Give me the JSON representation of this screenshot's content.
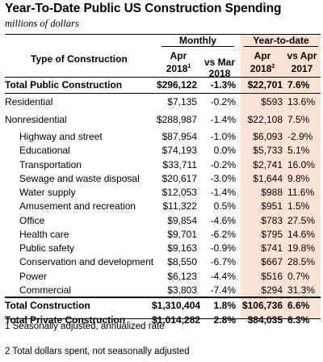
{
  "title": "Year-To-Date Public US Construction Spending",
  "subtitle": "millions of dollars",
  "headers": {
    "type_of_construction": "Type of Construction",
    "monthly": "Monthly",
    "ytd": "Year-to-date",
    "apr": "Apr",
    "year_2018": "2018",
    "vs_mar": "vs Mar",
    "vs_apr": "vs Apr",
    "year_2017": "2017",
    "sup1": "1",
    "sup2": "2"
  },
  "rows": [
    {
      "label": "Total Public Construction",
      "apr": "$296,122",
      "vs_mar": "-1.3%",
      "ytd_apr": "$22,701",
      "vs_apr": "7.6%",
      "bold": true,
      "indent": 0
    },
    {
      "label": "Residential",
      "apr": "$7,135",
      "vs_mar": "-0.2%",
      "ytd_apr": "$593",
      "vs_apr": "13.6%",
      "bold": false,
      "indent": 0
    },
    {
      "label": "Nonresidential",
      "apr": "$288,987",
      "vs_mar": "-1.4%",
      "ytd_apr": "$22,108",
      "vs_apr": "7.5%",
      "bold": false,
      "indent": 0
    },
    {
      "label": "Highway and street",
      "apr": "$87,954",
      "vs_mar": "-1.0%",
      "ytd_apr": "$6,093",
      "vs_apr": "-2.9%",
      "bold": false,
      "indent": 1
    },
    {
      "label": "Educational",
      "apr": "$74,193",
      "vs_mar": "0.0%",
      "ytd_apr": "$5,733",
      "vs_apr": "5.1%",
      "bold": false,
      "indent": 1
    },
    {
      "label": "Transportation",
      "apr": "$33,711",
      "vs_mar": "-0.2%",
      "ytd_apr": "$2,741",
      "vs_apr": "16.0%",
      "bold": false,
      "indent": 1
    },
    {
      "label": "Sewage and waste disposal",
      "apr": "$20,617",
      "vs_mar": "-3.0%",
      "ytd_apr": "$1,644",
      "vs_apr": "9.8%",
      "bold": false,
      "indent": 1
    },
    {
      "label": "Water supply",
      "apr": "$12,053",
      "vs_mar": "-1.4%",
      "ytd_apr": "$988",
      "vs_apr": "11.6%",
      "bold": false,
      "indent": 1
    },
    {
      "label": "Amusement and recreation",
      "apr": "$11,322",
      "vs_mar": "0.5%",
      "ytd_apr": "$951",
      "vs_apr": "1.5%",
      "bold": false,
      "indent": 1
    },
    {
      "label": "Office",
      "apr": "$9,854",
      "vs_mar": "-4.6%",
      "ytd_apr": "$783",
      "vs_apr": "27.5%",
      "bold": false,
      "indent": 1
    },
    {
      "label": "Health care",
      "apr": "$9,701",
      "vs_mar": "-6.2%",
      "ytd_apr": "$795",
      "vs_apr": "14.6%",
      "bold": false,
      "indent": 1
    },
    {
      "label": "Public safety",
      "apr": "$9,163",
      "vs_mar": "-0.9%",
      "ytd_apr": "$741",
      "vs_apr": "19.8%",
      "bold": false,
      "indent": 1
    },
    {
      "label": "Conservation and development",
      "apr": "$8,550",
      "vs_mar": "-6.7%",
      "ytd_apr": "$667",
      "vs_apr": "28.5%",
      "bold": false,
      "indent": 1
    },
    {
      "label": "Power",
      "apr": "$6,123",
      "vs_mar": "-4.4%",
      "ytd_apr": "$516",
      "vs_apr": "0.7%",
      "bold": false,
      "indent": 1
    },
    {
      "label": "Commercial",
      "apr": "$3,803",
      "vs_mar": "-7.4%",
      "ytd_apr": "$294",
      "vs_apr": "31.3%",
      "bold": false,
      "indent": 1
    },
    {
      "label": "Total Construction",
      "apr": "$1,310,404",
      "vs_mar": "1.8%",
      "ytd_apr": "$106,736",
      "vs_apr": "6.6%",
      "bold": true,
      "indent": 0
    },
    {
      "label": "Total Private Construction",
      "apr": "$1,014,282",
      "vs_mar": "2.8%",
      "ytd_apr": "$84,035",
      "vs_apr": "6.3%",
      "bold": true,
      "indent": 0
    }
  ],
  "footnotes": [
    "1 Seasonally adjusted, annualized rate",
    "2 Total dollars spent, not seasonally adjusted"
  ],
  "colors": {
    "ytd_highlight": "#fbe4d5",
    "rule": "#000000"
  }
}
